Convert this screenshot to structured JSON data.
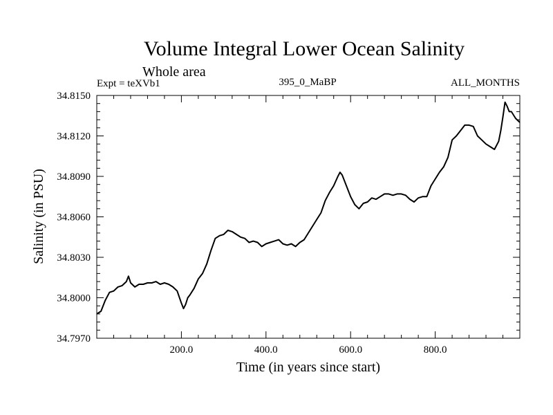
{
  "chart_data": {
    "type": "line",
    "title": "Volume Integral Lower Ocean Salinity",
    "subtitle": "Whole area",
    "experiment": "Expt = teXVb1",
    "run_label": "395_0_MaBP",
    "period_label": "ALL_MONTHS",
    "xlabel": "Time (in years since start)",
    "ylabel": "Salinity (in PSU)",
    "xlim": [
      0,
      1000
    ],
    "ylim": [
      34.797,
      34.815
    ],
    "x_ticks": [
      200,
      400,
      600,
      800
    ],
    "x_tick_labels": [
      "200.0",
      "400.0",
      "600.0",
      "800.0"
    ],
    "y_ticks": [
      34.797,
      34.8,
      34.803,
      34.806,
      34.809,
      34.812,
      34.815
    ],
    "y_tick_labels": [
      "34.7970",
      "34.8000",
      "34.8030",
      "34.8060",
      "34.8090",
      "34.8120",
      "34.8150"
    ],
    "series": [
      {
        "name": "Salinity",
        "x": [
          0,
          10,
          20,
          30,
          40,
          50,
          60,
          70,
          75,
          80,
          90,
          100,
          110,
          120,
          130,
          140,
          150,
          160,
          170,
          180,
          190,
          200,
          205,
          210,
          215,
          220,
          230,
          240,
          250,
          260,
          270,
          280,
          290,
          300,
          310,
          320,
          330,
          340,
          350,
          360,
          370,
          380,
          390,
          400,
          410,
          420,
          430,
          440,
          450,
          460,
          470,
          480,
          490,
          500,
          510,
          520,
          530,
          540,
          550,
          560,
          570,
          575,
          580,
          590,
          600,
          610,
          620,
          630,
          640,
          650,
          660,
          670,
          680,
          690,
          700,
          710,
          720,
          730,
          740,
          750,
          760,
          770,
          780,
          790,
          800,
          810,
          820,
          830,
          840,
          850,
          860,
          870,
          880,
          890,
          900,
          910,
          920,
          930,
          940,
          950,
          955,
          960,
          965,
          970,
          975,
          980,
          990,
          1000
        ],
        "y": [
          34.7988,
          34.799,
          34.7998,
          34.8004,
          34.8005,
          34.8008,
          34.8009,
          34.8012,
          34.8016,
          34.8011,
          34.8008,
          34.801,
          34.801,
          34.8011,
          34.8011,
          34.8012,
          34.801,
          34.8011,
          34.801,
          34.8008,
          34.8005,
          34.7996,
          34.7992,
          34.7995,
          34.8,
          34.8002,
          34.8007,
          34.8014,
          34.8018,
          34.8025,
          34.8035,
          34.8044,
          34.8046,
          34.8047,
          34.805,
          34.8049,
          34.8047,
          34.8045,
          34.8044,
          34.8041,
          34.8042,
          34.8041,
          34.8038,
          34.804,
          34.8041,
          34.8042,
          34.8043,
          34.804,
          34.8039,
          34.804,
          34.8038,
          34.8041,
          34.8043,
          34.8048,
          34.8053,
          34.8058,
          34.8063,
          34.8072,
          34.8078,
          34.8083,
          34.809,
          34.8093,
          34.8091,
          34.8083,
          34.8075,
          34.8069,
          34.8066,
          34.807,
          34.8071,
          34.8074,
          34.8073,
          34.8075,
          34.8077,
          34.8077,
          34.8076,
          34.8077,
          34.8077,
          34.8076,
          34.8073,
          34.8071,
          34.8074,
          34.8075,
          34.8075,
          34.8083,
          34.8088,
          34.8093,
          34.8097,
          34.8104,
          34.8117,
          34.812,
          34.8124,
          34.8128,
          34.8128,
          34.8127,
          34.812,
          34.8117,
          34.8114,
          34.8112,
          34.811,
          34.8116,
          34.8124,
          34.8134,
          34.8145,
          34.8142,
          34.8138,
          34.8138,
          34.8133,
          34.813
        ]
      }
    ]
  }
}
